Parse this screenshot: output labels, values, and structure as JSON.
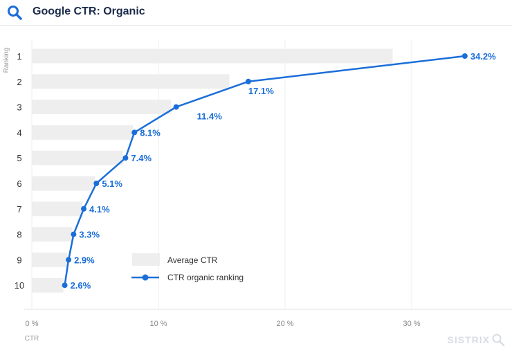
{
  "header": {
    "title": "Google CTR: Organic",
    "icon": "search-icon"
  },
  "watermark": {
    "text": "SISTRIX"
  },
  "colors": {
    "line": "#1a6ed8",
    "bar": "#eeeeee",
    "title": "#1a2b4a",
    "axis_text": "#888888"
  },
  "chart_data": {
    "type": "bar",
    "orientation": "horizontal",
    "categories": [
      "1",
      "2",
      "3",
      "4",
      "5",
      "6",
      "7",
      "8",
      "9",
      "10"
    ],
    "series": [
      {
        "name": "Average CTR",
        "type": "bar",
        "values": [
          28.5,
          15.6,
          11.0,
          8.0,
          7.2,
          5.0,
          4.0,
          3.2,
          2.8,
          2.5
        ]
      },
      {
        "name": "CTR organic ranking",
        "type": "line",
        "values": [
          34.2,
          17.1,
          11.4,
          8.1,
          7.4,
          5.1,
          4.1,
          3.3,
          2.9,
          2.6
        ],
        "labels": [
          "34.2%",
          "17.1%",
          "11.4%",
          "8.1%",
          "7.4%",
          "5.1%",
          "4.1%",
          "3.3%",
          "2.9%",
          "2.6%"
        ]
      }
    ],
    "xlabel": "CTR",
    "ylabel": "Ranking",
    "xlim": [
      0,
      37
    ],
    "xticks": [
      0,
      10,
      20,
      30
    ],
    "xtick_labels": [
      "0 %",
      "10 %",
      "20 %",
      "30 %"
    ],
    "grid": true,
    "legend": {
      "position": "bottom-center"
    }
  }
}
